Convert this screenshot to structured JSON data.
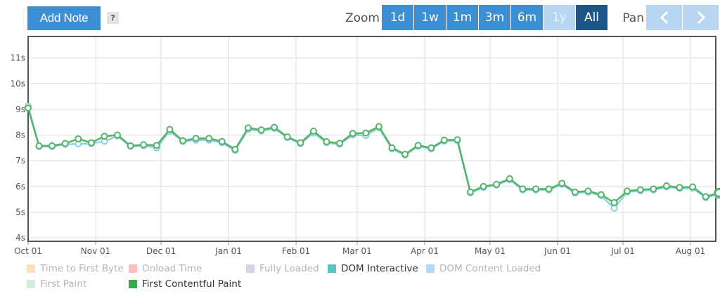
{
  "toolbar": {
    "add_note_label": "Add Note",
    "help_label": "?",
    "zoom_label": "Zoom",
    "zoom_options": [
      "1d",
      "1w",
      "1m",
      "3m",
      "6m",
      "1y",
      "All"
    ],
    "zoom_disabled": [
      "1y"
    ],
    "zoom_selected": "All",
    "pan_label": "Pan",
    "pan_prev_icon": "chevron-left-icon",
    "pan_next_icon": "chevron-right-icon"
  },
  "colors": {
    "line": "#53b46a",
    "interactive_line": "#8fd0e3",
    "plot_border": "#555555",
    "grid": "#dddddd"
  },
  "chart_data": {
    "type": "line",
    "x_tick_labels": [
      "Oct 01",
      "Nov 01",
      "Dec 01",
      "Jan 01",
      "Feb 01",
      "Mar 01",
      "Apr 01",
      "May 01",
      "Jun 01",
      "Jul 01",
      "Aug 01"
    ],
    "y_tick_labels": [
      "4s",
      "5s",
      "6s",
      "7s",
      "8s",
      "9s",
      "10s",
      "11s"
    ],
    "ylim": [
      4,
      11.5
    ],
    "grid": true,
    "legend": [
      {
        "name": "Time to First Byte",
        "color": "#fbd5a8",
        "active": false
      },
      {
        "name": "Onload Time",
        "color": "#f6aaa9",
        "active": false
      },
      {
        "name": "Fully Loaded",
        "color": "#c9c4df",
        "active": false
      },
      {
        "name": "DOM Interactive",
        "color": "#55c7c0",
        "active": true
      },
      {
        "name": "DOM Content Loaded",
        "color": "#9ccdf0",
        "active": false
      },
      {
        "name": "First Paint",
        "color": "#c6e8cc",
        "active": false
      },
      {
        "name": "First Contentful Paint",
        "color": "#3aa84f",
        "active": true
      }
    ],
    "legend_position": "bottom",
    "series": [
      {
        "name": "First Contentful Paint",
        "points": [
          [
            "2018-10-01",
            9.05
          ],
          [
            "2018-10-06",
            7.58
          ],
          [
            "2018-10-12",
            7.58
          ],
          [
            "2018-10-18",
            7.67
          ],
          [
            "2018-10-24",
            7.85
          ],
          [
            "2018-10-30",
            7.7
          ],
          [
            "2018-11-05",
            7.95
          ],
          [
            "2018-11-11",
            8.0
          ],
          [
            "2018-11-17",
            7.58
          ],
          [
            "2018-11-23",
            7.62
          ],
          [
            "2018-11-29",
            7.6
          ],
          [
            "2018-12-05",
            8.22
          ],
          [
            "2018-12-11",
            7.78
          ],
          [
            "2018-12-17",
            7.87
          ],
          [
            "2018-12-23",
            7.87
          ],
          [
            "2018-12-29",
            7.75
          ],
          [
            "2019-01-04",
            7.44
          ],
          [
            "2019-01-10",
            8.28
          ],
          [
            "2019-01-16",
            8.2
          ],
          [
            "2019-01-22",
            8.3
          ],
          [
            "2019-01-28",
            7.93
          ],
          [
            "2019-02-03",
            7.7
          ],
          [
            "2019-02-09",
            8.15
          ],
          [
            "2019-02-15",
            7.74
          ],
          [
            "2019-02-21",
            7.68
          ],
          [
            "2019-02-27",
            8.06
          ],
          [
            "2019-03-05",
            8.08
          ],
          [
            "2019-03-11",
            8.33
          ],
          [
            "2019-03-17",
            7.5
          ],
          [
            "2019-03-23",
            7.25
          ],
          [
            "2019-03-29",
            7.6
          ],
          [
            "2019-04-04",
            7.5
          ],
          [
            "2019-04-10",
            7.8
          ],
          [
            "2019-04-16",
            7.82
          ],
          [
            "2019-04-22",
            5.78
          ],
          [
            "2019-04-28",
            6.0
          ],
          [
            "2019-05-04",
            6.08
          ],
          [
            "2019-05-10",
            6.3
          ],
          [
            "2019-05-16",
            5.9
          ],
          [
            "2019-05-22",
            5.9
          ],
          [
            "2019-05-28",
            5.9
          ],
          [
            "2019-06-03",
            6.12
          ],
          [
            "2019-06-09",
            5.78
          ],
          [
            "2019-06-15",
            5.82
          ],
          [
            "2019-06-21",
            5.68
          ],
          [
            "2019-06-27",
            5.37
          ],
          [
            "2019-07-03",
            5.82
          ],
          [
            "2019-07-09",
            5.87
          ],
          [
            "2019-07-15",
            5.9
          ],
          [
            "2019-07-21",
            6.02
          ],
          [
            "2019-07-27",
            5.96
          ],
          [
            "2019-08-02",
            5.98
          ],
          [
            "2019-08-08",
            5.6
          ],
          [
            "2019-08-14",
            5.75
          ]
        ]
      },
      {
        "name": "DOM Interactive",
        "points": [
          [
            "2018-10-01",
            9.12
          ],
          [
            "2018-10-06",
            7.55
          ],
          [
            "2018-10-12",
            7.55
          ],
          [
            "2018-10-18",
            7.64
          ],
          [
            "2018-10-24",
            7.66
          ],
          [
            "2018-10-30",
            7.66
          ],
          [
            "2018-11-05",
            7.76
          ],
          [
            "2018-11-11",
            7.96
          ],
          [
            "2018-11-17",
            7.56
          ],
          [
            "2018-11-23",
            7.58
          ],
          [
            "2018-11-29",
            7.5
          ],
          [
            "2018-12-05",
            8.15
          ],
          [
            "2018-12-11",
            7.75
          ],
          [
            "2018-12-17",
            7.8
          ],
          [
            "2018-12-23",
            7.8
          ],
          [
            "2018-12-29",
            7.7
          ],
          [
            "2019-01-04",
            7.4
          ],
          [
            "2019-01-10",
            8.22
          ],
          [
            "2019-01-16",
            8.16
          ],
          [
            "2019-01-22",
            8.25
          ],
          [
            "2019-01-28",
            7.9
          ],
          [
            "2019-02-03",
            7.66
          ],
          [
            "2019-02-09",
            8.08
          ],
          [
            "2019-02-15",
            7.7
          ],
          [
            "2019-02-21",
            7.64
          ],
          [
            "2019-02-27",
            8.0
          ],
          [
            "2019-03-05",
            7.98
          ],
          [
            "2019-03-11",
            8.28
          ],
          [
            "2019-03-17",
            7.46
          ],
          [
            "2019-03-23",
            7.22
          ],
          [
            "2019-03-29",
            7.56
          ],
          [
            "2019-04-04",
            7.46
          ],
          [
            "2019-04-10",
            7.76
          ],
          [
            "2019-04-16",
            7.78
          ],
          [
            "2019-04-22",
            5.75
          ],
          [
            "2019-04-28",
            5.96
          ],
          [
            "2019-05-04",
            6.05
          ],
          [
            "2019-05-10",
            6.26
          ],
          [
            "2019-05-16",
            5.86
          ],
          [
            "2019-05-22",
            5.86
          ],
          [
            "2019-05-28",
            5.86
          ],
          [
            "2019-06-03",
            6.08
          ],
          [
            "2019-06-09",
            5.74
          ],
          [
            "2019-06-15",
            5.78
          ],
          [
            "2019-06-21",
            5.64
          ],
          [
            "2019-06-27",
            5.15
          ],
          [
            "2019-07-03",
            5.78
          ],
          [
            "2019-07-09",
            5.83
          ],
          [
            "2019-07-15",
            5.86
          ],
          [
            "2019-07-21",
            5.98
          ],
          [
            "2019-07-27",
            5.92
          ],
          [
            "2019-08-02",
            5.93
          ],
          [
            "2019-08-08",
            5.56
          ],
          [
            "2019-08-14",
            5.7
          ]
        ]
      }
    ]
  }
}
